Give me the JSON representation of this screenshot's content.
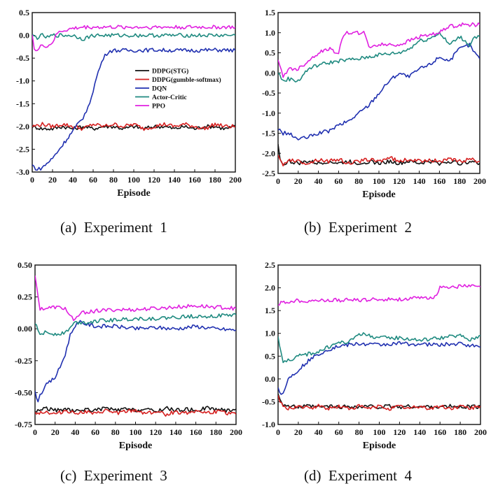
{
  "captions": [
    "(a)  Experiment  1",
    "(b)  Experiment  2",
    "(c)  Experiment  3",
    "(d)  Experiment  4"
  ],
  "colors": {
    "DDPG(STG)": "#111111",
    "DDPG(gumble-softmax)": "#d62020",
    "DQN": "#2030b0",
    "Actor-Critic": "#1f8a80",
    "PPO": "#e020e0"
  },
  "chart_data": [
    {
      "type": "line",
      "caption": "(a)  Experiment  1",
      "xlabel": "Episode",
      "ylabel": "",
      "xlim": [
        0,
        200
      ],
      "ylim": [
        -3.0,
        0.5
      ],
      "xticks": [
        0,
        20,
        40,
        60,
        80,
        100,
        120,
        140,
        160,
        180,
        200
      ],
      "yticks": [
        "0.5",
        "0.0",
        "-0.5",
        "-1.0",
        "-1.5",
        "-2.0",
        "-2.5",
        "-3.0"
      ],
      "legend": [
        "DDPG(STG)",
        "DDPG(gumble-softmax)",
        "DQN",
        "Actor-Critic",
        "PPO"
      ],
      "series": [
        {
          "name": "DDPG(STG)",
          "x": [
            0,
            10,
            20,
            30,
            40,
            50,
            60,
            70,
            80,
            90,
            100,
            110,
            120,
            130,
            140,
            150,
            160,
            170,
            180,
            190,
            200
          ],
          "y": [
            -2.0,
            -2.05,
            -2.05,
            -2.0,
            -2.05,
            -2.0,
            -2.05,
            -2.0,
            -2.0,
            -2.05,
            -2.0,
            -2.05,
            -2.0,
            -2.0,
            -2.05,
            -2.0,
            -2.05,
            -2.0,
            -2.0,
            -2.05,
            -2.0
          ]
        },
        {
          "name": "DDPG(gumble-softmax)",
          "x": [
            0,
            10,
            20,
            30,
            40,
            50,
            60,
            70,
            80,
            90,
            100,
            110,
            120,
            130,
            140,
            150,
            160,
            170,
            180,
            190,
            200
          ],
          "y": [
            -2.0,
            -1.95,
            -2.0,
            -1.95,
            -2.0,
            -2.05,
            -1.95,
            -2.0,
            -1.95,
            -2.0,
            -1.95,
            -2.05,
            -2.0,
            -1.95,
            -2.0,
            -1.95,
            -2.0,
            -2.05,
            -1.95,
            -2.0,
            -2.0
          ]
        },
        {
          "name": "DQN",
          "x": [
            0,
            5,
            10,
            20,
            30,
            40,
            50,
            55,
            60,
            65,
            70,
            75,
            80,
            100,
            120,
            140,
            160,
            180,
            200
          ],
          "y": [
            -2.85,
            -2.95,
            -2.9,
            -2.7,
            -2.4,
            -2.1,
            -1.8,
            -1.6,
            -1.2,
            -0.8,
            -0.5,
            -0.35,
            -0.33,
            -0.33,
            -0.32,
            -0.33,
            -0.33,
            -0.32,
            -0.33
          ]
        },
        {
          "name": "Actor-Critic",
          "x": [
            0,
            5,
            10,
            15,
            20,
            30,
            40,
            50,
            60,
            80,
            100,
            120,
            140,
            160,
            180,
            200
          ],
          "y": [
            0.0,
            -0.05,
            0.0,
            -0.05,
            0.0,
            0.0,
            0.0,
            -0.08,
            0.0,
            0.0,
            0.0,
            0.0,
            0.0,
            0.0,
            0.0,
            0.0
          ]
        },
        {
          "name": "PPO",
          "x": [
            0,
            2,
            5,
            10,
            15,
            20,
            25,
            30,
            40,
            50,
            60,
            80,
            100,
            120,
            140,
            160,
            180,
            200
          ],
          "y": [
            0.05,
            -0.3,
            -0.35,
            -0.2,
            -0.25,
            -0.15,
            0.05,
            0.1,
            0.15,
            0.18,
            0.18,
            0.18,
            0.18,
            0.18,
            0.18,
            0.18,
            0.18,
            0.18
          ]
        }
      ]
    },
    {
      "type": "line",
      "caption": "(b)  Experiment  2",
      "xlabel": "Episode",
      "ylabel": "",
      "xlim": [
        0,
        200
      ],
      "ylim": [
        -2.5,
        1.5
      ],
      "xticks": [
        0,
        20,
        40,
        60,
        80,
        100,
        120,
        140,
        160,
        180,
        200
      ],
      "yticks": [
        "1.5",
        "1.0",
        "0.5",
        "0.0",
        "-0.5",
        "-1.0",
        "-1.5",
        "-2.0",
        "-2.5"
      ],
      "legend": [],
      "series": [
        {
          "name": "DDPG(STG)",
          "x": [
            0,
            2,
            5,
            10,
            20,
            30,
            40,
            50,
            60,
            70,
            80,
            90,
            100,
            110,
            120,
            130,
            140,
            150,
            160,
            170,
            180,
            190,
            200
          ],
          "y": [
            -1.8,
            -2.1,
            -2.3,
            -2.2,
            -2.25,
            -2.2,
            -2.25,
            -2.2,
            -2.25,
            -2.2,
            -2.25,
            -2.2,
            -2.25,
            -2.2,
            -2.25,
            -2.2,
            -2.25,
            -2.2,
            -2.25,
            -2.2,
            -2.25,
            -2.2,
            -2.25
          ]
        },
        {
          "name": "DDPG(gumble-softmax)",
          "x": [
            0,
            2,
            5,
            10,
            20,
            30,
            40,
            50,
            60,
            70,
            80,
            90,
            100,
            110,
            120,
            130,
            140,
            150,
            160,
            170,
            180,
            190,
            200
          ],
          "y": [
            -2.0,
            -2.2,
            -2.3,
            -2.15,
            -2.2,
            -2.25,
            -2.15,
            -2.2,
            -2.15,
            -2.25,
            -2.2,
            -2.15,
            -2.2,
            -2.1,
            -2.2,
            -2.15,
            -2.2,
            -2.15,
            -2.2,
            -2.15,
            -2.2,
            -2.15,
            -2.2
          ]
        },
        {
          "name": "DQN",
          "x": [
            0,
            5,
            10,
            20,
            30,
            40,
            50,
            60,
            70,
            80,
            90,
            100,
            110,
            120,
            130,
            140,
            150,
            160,
            170,
            180,
            190,
            195,
            200
          ],
          "y": [
            -1.4,
            -1.5,
            -1.5,
            -1.65,
            -1.6,
            -1.5,
            -1.45,
            -1.3,
            -1.2,
            -1.0,
            -0.8,
            -0.5,
            -0.2,
            0.0,
            -0.1,
            0.1,
            0.2,
            0.4,
            0.3,
            0.6,
            0.7,
            0.5,
            0.35
          ]
        },
        {
          "name": "Actor-Critic",
          "x": [
            0,
            5,
            10,
            20,
            30,
            40,
            60,
            80,
            100,
            120,
            130,
            140,
            150,
            160,
            170,
            180,
            190,
            195,
            200
          ],
          "y": [
            0.0,
            -0.2,
            -0.15,
            -0.2,
            0.1,
            0.2,
            0.3,
            0.35,
            0.45,
            0.5,
            0.6,
            0.8,
            0.85,
            1.0,
            0.7,
            0.9,
            0.7,
            0.9,
            0.9
          ]
        },
        {
          "name": "PPO",
          "x": [
            0,
            5,
            10,
            20,
            30,
            40,
            50,
            60,
            65,
            70,
            80,
            85,
            90,
            100,
            120,
            140,
            160,
            170,
            180,
            190,
            200
          ],
          "y": [
            0.3,
            -0.1,
            0.1,
            0.1,
            0.3,
            0.5,
            0.6,
            0.5,
            0.95,
            1.0,
            1.0,
            1.0,
            0.65,
            0.7,
            0.7,
            0.9,
            1.0,
            1.15,
            1.2,
            1.2,
            1.2
          ]
        }
      ]
    },
    {
      "type": "line",
      "caption": "(c)  Experiment  3",
      "xlabel": "Episode",
      "ylabel": "",
      "xlim": [
        0,
        200
      ],
      "ylim": [
        -0.75,
        0.5
      ],
      "xticks": [
        0,
        20,
        40,
        60,
        80,
        100,
        120,
        140,
        160,
        180,
        200
      ],
      "yticks": [
        "0.50",
        "0.25",
        "0.00",
        "-0.25",
        "-0.50",
        "-0.75"
      ],
      "legend": [],
      "series": [
        {
          "name": "DDPG(STG)",
          "x": [
            0,
            10,
            20,
            30,
            40,
            50,
            60,
            70,
            80,
            90,
            100,
            110,
            120,
            130,
            140,
            150,
            160,
            170,
            180,
            190,
            200
          ],
          "y": [
            -0.65,
            -0.62,
            -0.64,
            -0.63,
            -0.65,
            -0.63,
            -0.64,
            -0.62,
            -0.64,
            -0.63,
            -0.64,
            -0.63,
            -0.65,
            -0.62,
            -0.64,
            -0.63,
            -0.64,
            -0.62,
            -0.63,
            -0.64,
            -0.63
          ]
        },
        {
          "name": "DDPG(gumble-softmax)",
          "x": [
            0,
            10,
            20,
            30,
            40,
            50,
            60,
            70,
            80,
            90,
            100,
            110,
            120,
            130,
            140,
            150,
            160,
            170,
            180,
            190,
            200
          ],
          "y": [
            -0.66,
            -0.65,
            -0.67,
            -0.64,
            -0.66,
            -0.65,
            -0.67,
            -0.64,
            -0.66,
            -0.65,
            -0.64,
            -0.66,
            -0.65,
            -0.67,
            -0.65,
            -0.66,
            -0.64,
            -0.66,
            -0.65,
            -0.66,
            -0.67
          ]
        },
        {
          "name": "DQN",
          "x": [
            0,
            3,
            5,
            10,
            20,
            25,
            30,
            35,
            40,
            45,
            50,
            60,
            80,
            100,
            120,
            140,
            160,
            180,
            200
          ],
          "y": [
            -0.5,
            -0.56,
            -0.52,
            -0.45,
            -0.38,
            -0.3,
            -0.2,
            -0.05,
            0.03,
            0.05,
            0.04,
            0.02,
            0.02,
            0.0,
            0.01,
            0.0,
            0.02,
            0.0,
            -0.01
          ]
        },
        {
          "name": "Actor-Critic",
          "x": [
            0,
            3,
            5,
            10,
            20,
            30,
            40,
            50,
            60,
            80,
            100,
            120,
            140,
            160,
            180,
            200
          ],
          "y": [
            0.05,
            -0.02,
            -0.04,
            -0.03,
            -0.04,
            -0.03,
            0.05,
            0.05,
            0.06,
            0.07,
            0.08,
            0.08,
            0.09,
            0.1,
            0.1,
            0.11
          ]
        },
        {
          "name": "PPO",
          "x": [
            0,
            2,
            5,
            10,
            20,
            30,
            35,
            40,
            45,
            50,
            60,
            80,
            100,
            120,
            140,
            160,
            180,
            200
          ],
          "y": [
            0.42,
            0.3,
            0.16,
            0.16,
            0.17,
            0.16,
            0.1,
            0.07,
            0.12,
            0.13,
            0.14,
            0.15,
            0.15,
            0.16,
            0.17,
            0.18,
            0.17,
            0.16
          ]
        }
      ]
    },
    {
      "type": "line",
      "caption": "(d)  Experiment  4",
      "xlabel": "Episode",
      "ylabel": "",
      "xlim": [
        0,
        200
      ],
      "ylim": [
        -1.0,
        2.5
      ],
      "xticks": [
        0,
        20,
        40,
        60,
        80,
        100,
        120,
        140,
        160,
        180,
        200
      ],
      "yticks": [
        "2.5",
        "2.0",
        "1.5",
        "1.0",
        "0.5",
        "0.0",
        "-0.5",
        "-1.0"
      ],
      "legend": [],
      "series": [
        {
          "name": "DDPG(STG)",
          "x": [
            0,
            2,
            5,
            10,
            20,
            30,
            40,
            50,
            60,
            70,
            80,
            90,
            100,
            110,
            120,
            130,
            140,
            150,
            160,
            170,
            180,
            190,
            200
          ],
          "y": [
            -0.3,
            -0.45,
            -0.55,
            -0.6,
            -0.62,
            -0.6,
            -0.62,
            -0.6,
            -0.62,
            -0.6,
            -0.62,
            -0.6,
            -0.62,
            -0.6,
            -0.62,
            -0.6,
            -0.62,
            -0.6,
            -0.62,
            -0.6,
            -0.62,
            -0.6,
            -0.62
          ]
        },
        {
          "name": "DDPG(gumble-softmax)",
          "x": [
            0,
            2,
            5,
            10,
            20,
            30,
            40,
            50,
            60,
            70,
            80,
            90,
            100,
            110,
            120,
            130,
            140,
            150,
            160,
            170,
            180,
            190,
            200
          ],
          "y": [
            -0.35,
            -0.5,
            -0.62,
            -0.65,
            -0.6,
            -0.65,
            -0.6,
            -0.65,
            -0.6,
            -0.65,
            -0.6,
            -0.65,
            -0.6,
            -0.65,
            -0.6,
            -0.65,
            -0.6,
            -0.65,
            -0.6,
            -0.65,
            -0.6,
            -0.65,
            -0.6
          ]
        },
        {
          "name": "DQN",
          "x": [
            0,
            3,
            5,
            10,
            20,
            30,
            40,
            50,
            60,
            70,
            80,
            100,
            120,
            140,
            160,
            180,
            200
          ],
          "y": [
            -0.2,
            -0.35,
            -0.3,
            0.0,
            0.2,
            0.4,
            0.55,
            0.65,
            0.72,
            0.75,
            0.77,
            0.75,
            0.78,
            0.76,
            0.75,
            0.77,
            0.7
          ]
        },
        {
          "name": "Actor-Critic",
          "x": [
            0,
            3,
            5,
            10,
            20,
            30,
            40,
            50,
            60,
            70,
            80,
            90,
            100,
            120,
            140,
            160,
            180,
            190,
            200
          ],
          "y": [
            0.9,
            0.6,
            0.4,
            0.4,
            0.5,
            0.55,
            0.6,
            0.7,
            0.8,
            0.8,
            1.0,
            0.95,
            0.9,
            0.9,
            0.85,
            0.9,
            0.95,
            0.85,
            0.95
          ]
        },
        {
          "name": "PPO",
          "x": [
            0,
            10,
            20,
            40,
            60,
            80,
            100,
            120,
            140,
            155,
            160,
            165,
            170,
            180,
            190,
            200
          ],
          "y": [
            1.65,
            1.7,
            1.72,
            1.72,
            1.73,
            1.73,
            1.75,
            1.75,
            1.77,
            1.8,
            2.0,
            2.03,
            2.02,
            2.03,
            2.04,
            2.02
          ]
        }
      ]
    }
  ]
}
